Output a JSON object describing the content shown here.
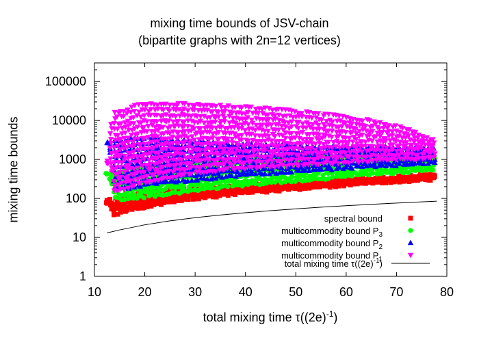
{
  "chart_data": {
    "type": "scatter",
    "title": "mixing time bounds of JSV-chain",
    "subtitle": "(bipartite graphs with 2n=12 vertices)",
    "xlabel_base": "total mixing time τ((2e)",
    "xlabel_sup": "-1",
    "xlabel_end": ")",
    "ylabel": "mixing time bounds",
    "x_ticks": [
      "10",
      "20",
      "30",
      "40",
      "50",
      "60",
      "70",
      "80"
    ],
    "y_ticks": [
      "1",
      "10",
      "100",
      "1000",
      "10000",
      "100000"
    ],
    "xlim": [
      10,
      80
    ],
    "ylim": [
      1,
      300000
    ],
    "y_scale": "log",
    "legend_position": "bottom-right",
    "reference_curve": {
      "label_base": "total mixing time τ((2e)",
      "label_sup": "-1",
      "label_end": ")",
      "color": "#000000",
      "x": [
        12.5,
        15,
        20,
        25,
        30,
        35,
        40,
        45,
        50,
        55,
        60,
        65,
        70,
        75,
        78
      ],
      "y": [
        13,
        15.5,
        21,
        26.5,
        32,
        37.5,
        43,
        48.5,
        54,
        59.5,
        65,
        70.5,
        76,
        81.5,
        85
      ]
    },
    "series": [
      {
        "label_base": "spectral bound",
        "label_sub": "",
        "marker": "square",
        "color": "#ff0000",
        "x": [
          12.5,
          14,
          16,
          18,
          20,
          22,
          25,
          28,
          30,
          33,
          36,
          40,
          44,
          48,
          52,
          56,
          60,
          64,
          68,
          72,
          75,
          78
        ],
        "y_min": [
          75,
          38,
          48,
          55,
          62,
          70,
          80,
          90,
          100,
          110,
          125,
          140,
          155,
          170,
          185,
          200,
          220,
          240,
          260,
          280,
          300,
          320
        ],
        "y_max": [
          90,
          95,
          110,
          125,
          140,
          150,
          160,
          170,
          180,
          190,
          200,
          215,
          230,
          245,
          260,
          280,
          300,
          320,
          340,
          360,
          380,
          420
        ]
      },
      {
        "label_base": "multicommodity bound P",
        "label_sub": "3",
        "marker": "circle",
        "color": "#00ff00",
        "x": [
          12.5,
          14,
          16,
          18,
          20,
          22,
          25,
          28,
          30,
          33,
          36,
          40,
          44,
          48,
          52,
          56,
          60,
          64,
          68,
          72,
          75,
          78
        ],
        "y_min": [
          390,
          110,
          90,
          100,
          110,
          120,
          135,
          150,
          165,
          180,
          200,
          220,
          245,
          270,
          300,
          330,
          360,
          400,
          440,
          480,
          520,
          560
        ],
        "y_max": [
          420,
          470,
          520,
          570,
          620,
          680,
          740,
          800,
          850,
          900,
          950,
          1000,
          1050,
          1100,
          1150,
          1200,
          1250,
          1300,
          1350,
          1400,
          1450,
          1500
        ]
      },
      {
        "label_base": "multicommodity bound P",
        "label_sub": "2",
        "marker": "triangle-up",
        "color": "#0000ff",
        "x": [
          12.5,
          14,
          16,
          18,
          20,
          22,
          25,
          28,
          30,
          33,
          36,
          40,
          44,
          48,
          52,
          56,
          60,
          64,
          68,
          72,
          75,
          78
        ],
        "y_min": [
          2600,
          200,
          180,
          200,
          220,
          240,
          260,
          280,
          300,
          330,
          360,
          400,
          440,
          480,
          520,
          560,
          600,
          650,
          700,
          750,
          800,
          850
        ],
        "y_max": [
          2800,
          3000,
          3200,
          3400,
          3600,
          3500,
          3200,
          3000,
          2800,
          2600,
          2500,
          2400,
          2300,
          2200,
          2100,
          2000,
          2000,
          2000,
          2000,
          2000,
          2000,
          2000
        ]
      },
      {
        "label_base": "multicommodity bound P",
        "label_sub": "1",
        "marker": "triangle-down",
        "color": "#ff00ff",
        "x": [
          12.5,
          14,
          16,
          18,
          20,
          22,
          25,
          28,
          30,
          33,
          36,
          40,
          44,
          48,
          52,
          56,
          60,
          64,
          68,
          72,
          75,
          78
        ],
        "y_min": [
          800,
          150,
          180,
          220,
          260,
          300,
          350,
          400,
          450,
          500,
          550,
          600,
          650,
          700,
          750,
          800,
          850,
          900,
          950,
          1000,
          1100,
          1200
        ],
        "y_max": [
          900,
          16000,
          18000,
          24000,
          26000,
          26000,
          26000,
          26000,
          25000,
          24000,
          23000,
          22000,
          20000,
          18000,
          16000,
          14000,
          12000,
          10000,
          8000,
          6000,
          4000,
          3000
        ]
      }
    ]
  }
}
